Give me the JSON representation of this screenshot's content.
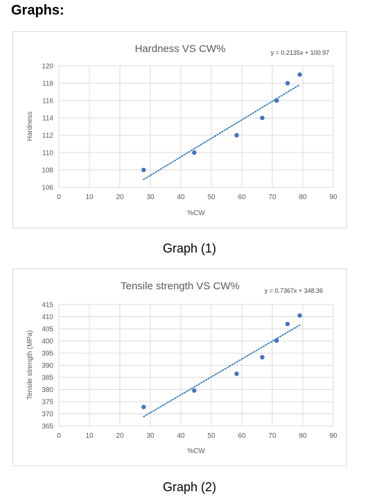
{
  "page": {
    "heading": "Graphs:",
    "captions": [
      "Graph (1)",
      "Graph (2)"
    ]
  },
  "colors": {
    "marker": "#4472c4",
    "trendline": "#2e75b6",
    "gridline": "#d9d9d9",
    "axis_text": "#595959",
    "title_text": "#595959"
  },
  "chart_data": [
    {
      "type": "scatter",
      "title": "Hardness VS CW%",
      "xlabel": "%CW",
      "ylabel": "Hardness",
      "xlim": [
        0,
        90
      ],
      "ylim": [
        106,
        120
      ],
      "x_ticks": [
        0,
        10,
        20,
        30,
        40,
        50,
        60,
        70,
        80,
        90
      ],
      "y_ticks": [
        106,
        108,
        110,
        112,
        114,
        116,
        118,
        120
      ],
      "grid": true,
      "series": [
        {
          "x": [
            27.8,
            44.4,
            58.3,
            66.7,
            71.4,
            75.0,
            79.0
          ],
          "y": [
            108,
            110,
            112,
            114,
            116,
            118,
            119
          ]
        }
      ],
      "trendline": {
        "type": "linear",
        "slope": 0.2135,
        "intercept": 100.97,
        "equation": "y = 0.2135x + 100.97",
        "x_range": [
          27.8,
          79.0
        ]
      }
    },
    {
      "type": "scatter",
      "title": "Tensile strength VS CW%",
      "xlabel": "%CW",
      "ylabel": "Tensile strength (MPa)",
      "xlim": [
        0,
        90
      ],
      "ylim": [
        365,
        415
      ],
      "x_ticks": [
        0,
        10,
        20,
        30,
        40,
        50,
        60,
        70,
        80,
        90
      ],
      "y_ticks": [
        365,
        370,
        375,
        380,
        385,
        390,
        395,
        400,
        405,
        410,
        415
      ],
      "grid": true,
      "series": [
        {
          "x": [
            27.8,
            44.4,
            58.3,
            66.7,
            71.4,
            75.0,
            79.0
          ],
          "y": [
            372.8,
            379.6,
            386.5,
            393.3,
            400.2,
            407.0,
            410.5
          ]
        }
      ],
      "trendline": {
        "type": "linear",
        "slope": 0.7367,
        "intercept": 348.36,
        "equation": "y = 0.7367x + 348.36",
        "x_range": [
          27.8,
          79.0
        ]
      }
    }
  ]
}
